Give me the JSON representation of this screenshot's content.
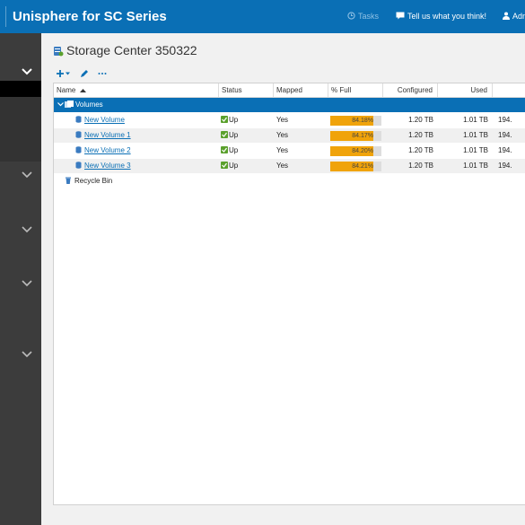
{
  "header": {
    "app_title": "Unisphere for SC Series",
    "tasks_label": "Tasks",
    "feedback_label": "Tell us what you think!",
    "user_label": "Adm"
  },
  "page": {
    "title": "Storage Center 350322"
  },
  "table": {
    "columns": [
      "Name",
      "Status",
      "Mapped",
      "% Full",
      "Configured",
      "Used"
    ],
    "group_label": "Volumes",
    "rows": [
      {
        "name": "New Volume",
        "status": "Up",
        "mapped": "Yes",
        "full_label": "84.18%",
        "full": 84.18,
        "configured": "1.20 TB",
        "used": "1.01 TB",
        "extra": "194."
      },
      {
        "name": "New Volume 1",
        "status": "Up",
        "mapped": "Yes",
        "full_label": "84.17%",
        "full": 84.17,
        "configured": "1.20 TB",
        "used": "1.01 TB",
        "extra": "194."
      },
      {
        "name": "New Volume 2",
        "status": "Up",
        "mapped": "Yes",
        "full_label": "84.20%",
        "full": 84.2,
        "configured": "1.20 TB",
        "used": "1.01 TB",
        "extra": "194."
      },
      {
        "name": "New Volume 3",
        "status": "Up",
        "mapped": "Yes",
        "full_label": "84.21%",
        "full": 84.21,
        "configured": "1.20 TB",
        "used": "1.01 TB",
        "extra": "194."
      }
    ],
    "recycle_bin_label": "Recycle Bin"
  },
  "colors": {
    "header_blue": "#0a6fb5",
    "sidebar": "#3c3c3c",
    "bar_fill": "#f0a30a",
    "status_green": "#5aa02c"
  },
  "icons": {
    "tasks": "clock-icon",
    "feedback": "speech-bubble-icon",
    "add": "plus-icon",
    "edit": "pencil-icon",
    "more": "ellipsis-icon",
    "volume": "database-icon",
    "status": "check-icon",
    "recycle": "trash-icon"
  }
}
